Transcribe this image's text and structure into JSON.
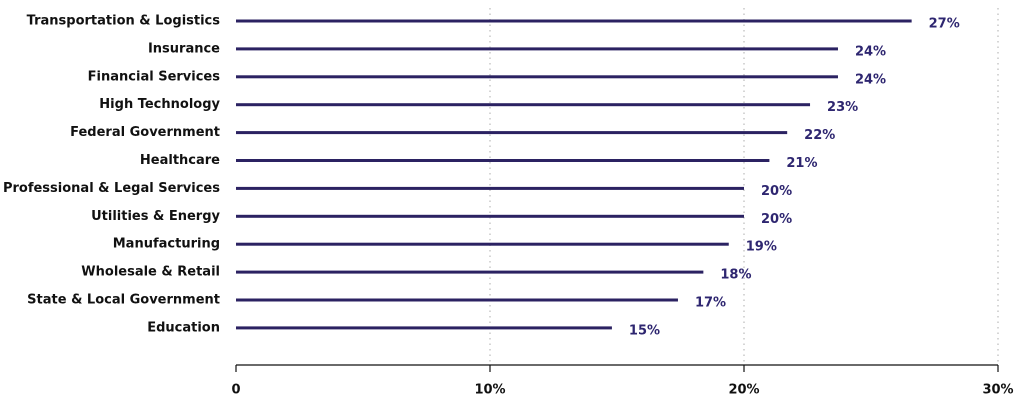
{
  "chart_data": {
    "type": "bar",
    "orientation": "horizontal",
    "categories": [
      "Transportation & Logistics",
      "Insurance",
      "Financial Services",
      "High Technology",
      "Federal Government",
      "Healthcare",
      "Professional & Legal Services",
      "Utilities & Energy",
      "Manufacturing",
      "Wholesale & Retail",
      "State & Local Government",
      "Education"
    ],
    "values": [
      26.6,
      23.7,
      23.7,
      22.6,
      21.7,
      21.0,
      20.0,
      20.0,
      19.4,
      18.4,
      17.4,
      14.8
    ],
    "value_labels": [
      "27%",
      "24%",
      "24%",
      "23%",
      "22%",
      "21%",
      "20%",
      "20%",
      "19%",
      "18%",
      "17%",
      "15%"
    ],
    "color": "#2b2262",
    "xlim": [
      0,
      30
    ],
    "xticks": [
      0,
      {
        "value": 10,
        "label": "10%"
      },
      {
        "value": 20,
        "label": "20%"
      },
      {
        "value": 30,
        "label": "30%"
      }
    ],
    "grid": true
  }
}
